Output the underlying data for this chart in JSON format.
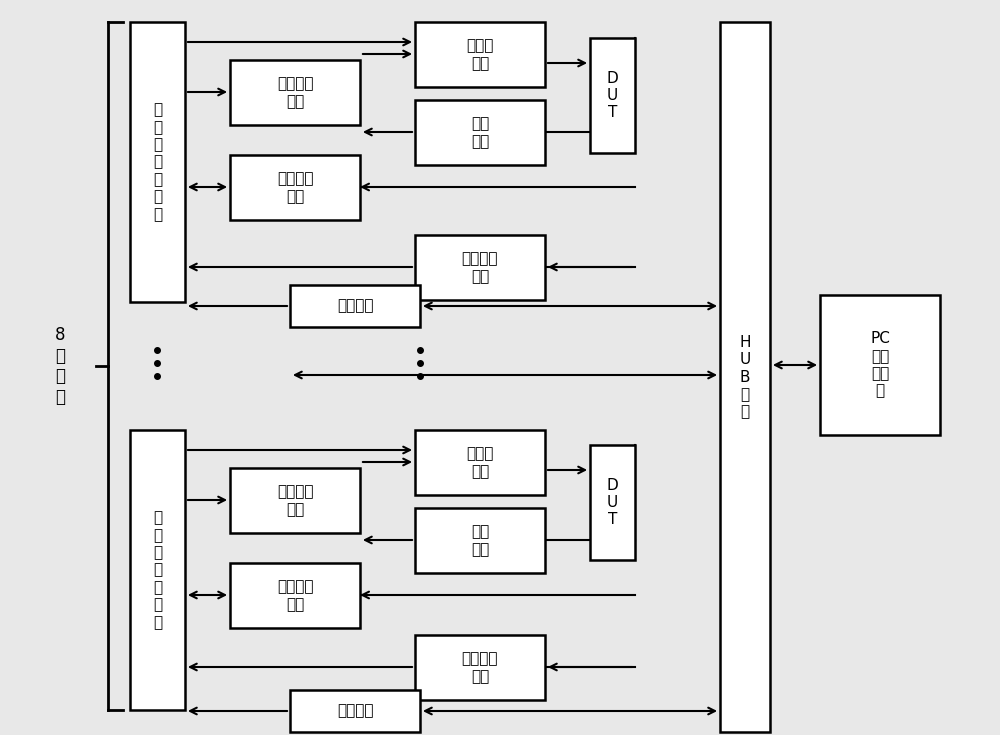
{
  "bg_color": "#e8e8e8",
  "box_fc": "#ffffff",
  "box_ec": "#000000",
  "top": {
    "core_label": "核\n心\n控\n制\n板\n模\n块",
    "switch_label": "开关切换\n模块",
    "current_label": "电流源\n模块",
    "power_label": "电源\n模块",
    "signal_label": "信号监控\n模块",
    "data_label": "数据采集\n模块",
    "comm_label": "通讯模块",
    "dut_label": "D\nU\nT"
  },
  "bottom": {
    "core_label": "核\n心\n控\n制\n板\n模\n块",
    "switch_label": "开关切换\n模块",
    "current_label": "电流源\n模块",
    "power_label": "电源\n模块",
    "signal_label": "信号监控\n模块",
    "data_label": "数据采集\n模块",
    "comm_label": "通讯模块",
    "dut_label": "D\nU\nT"
  },
  "hub_label": "H\nU\nB\n接\n口",
  "pc_label": "PC\n机主\n控模\n块",
  "channel_label": "8\n个\n通\n道"
}
